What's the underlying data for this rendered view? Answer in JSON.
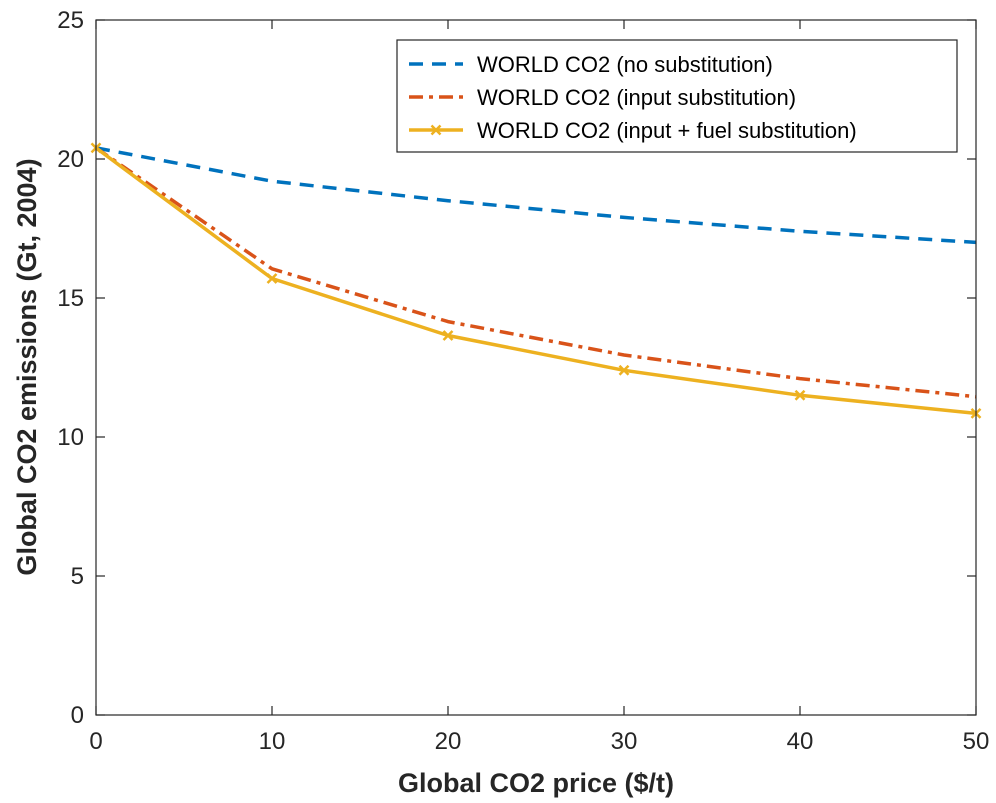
{
  "chart_data": {
    "type": "line",
    "xlabel": "Global CO2 price ($/t)",
    "ylabel": "Global CO2 emissions (Gt, 2004)",
    "xlim": [
      0,
      50
    ],
    "ylim": [
      0,
      25
    ],
    "xticks": [
      0,
      10,
      20,
      30,
      40,
      50
    ],
    "yticks": [
      0,
      5,
      10,
      15,
      20,
      25
    ],
    "grid": false,
    "legend_position": "top-right",
    "x": [
      0,
      10,
      20,
      30,
      40,
      50
    ],
    "series": [
      {
        "name": "WORLD CO2 (no substitution)",
        "values": [
          20.4,
          19.2,
          18.5,
          17.9,
          17.4,
          17.0
        ],
        "color": "#0072BD",
        "line_style": "dashed",
        "marker": "none"
      },
      {
        "name": "WORLD CO2 (input substitution)",
        "values": [
          20.4,
          16.05,
          14.15,
          12.95,
          12.1,
          11.45
        ],
        "color": "#D95319",
        "line_style": "dash-dot",
        "marker": "none"
      },
      {
        "name": "WORLD CO2 (input + fuel substitution)",
        "values": [
          20.4,
          15.7,
          13.65,
          12.4,
          11.5,
          10.85
        ],
        "color": "#EDB120",
        "line_style": "solid",
        "marker": "x"
      }
    ]
  }
}
